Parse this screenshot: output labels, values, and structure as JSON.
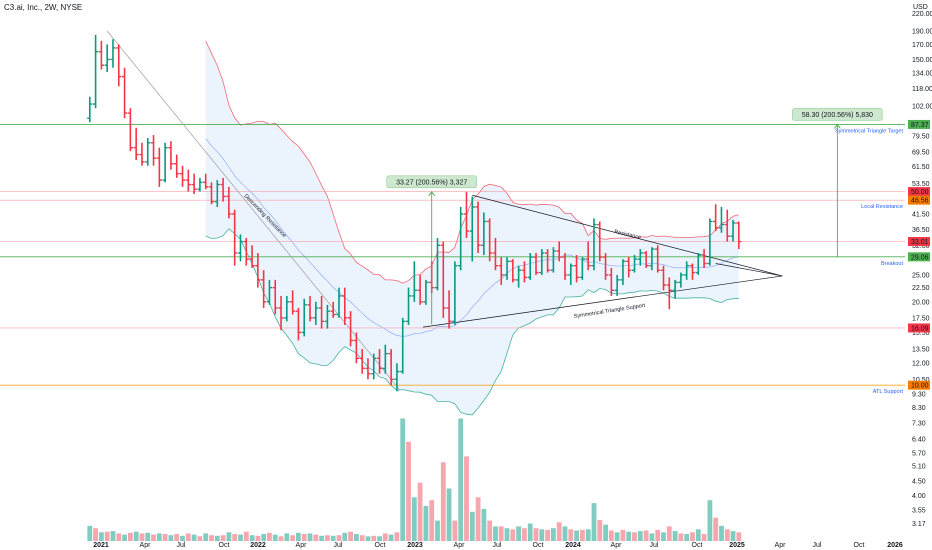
{
  "header": {
    "symbol": "C3.ai, Inc., 2W, NYSE",
    "currency": "USD"
  },
  "chart_data": {
    "type": "candlestick",
    "interval": "2W",
    "y_scale": "log",
    "ylim": [
      3.0,
      230.0
    ],
    "y_ticks": [
      "220.00",
      "190.00",
      "170.00",
      "150.00",
      "134.00",
      "118.00",
      "102.00",
      "79.50",
      "69.50",
      "61.50",
      "53.50",
      "41.50",
      "36.50",
      "32.00",
      "25.00",
      "22.50",
      "20.00",
      "17.50",
      "15.50",
      "13.50",
      "12.00",
      "10.50",
      "9.30",
      "8.30",
      "7.30",
      "6.40",
      "5.70",
      "5.10",
      "4.50",
      "4.00",
      "3.55",
      "3.17"
    ],
    "y_tick_values": [
      220,
      190,
      170,
      150,
      134,
      118,
      102,
      79.5,
      69.5,
      61.5,
      53.5,
      41.5,
      36.5,
      32,
      25,
      22.5,
      20,
      17.5,
      15.5,
      13.5,
      12,
      10.5,
      9.3,
      8.3,
      7.3,
      6.4,
      5.7,
      5.1,
      4.5,
      4.0,
      3.55,
      3.17
    ],
    "x_ticks": [
      "2021",
      "Apr",
      "Jul",
      "Oct",
      "2022",
      "Apr",
      "Jul",
      "Oct",
      "2023",
      "Apr",
      "Jul",
      "Oct",
      "2024",
      "Apr",
      "Jul",
      "Oct",
      "2025",
      "Apr",
      "Jul",
      "Oct",
      "2026"
    ],
    "x_tick_bold": [
      "2021",
      "2022",
      "2023",
      "2024",
      "2025",
      "2026"
    ],
    "price_badges": [
      {
        "value": 87.37,
        "text": "87.37",
        "color": "#4caf50"
      },
      {
        "value": 50.0,
        "text": "50.00",
        "color": "#f23645"
      },
      {
        "value": 46.56,
        "text": "46.56",
        "color": "#f57c00"
      },
      {
        "value": 33.01,
        "text": "33.01",
        "color": "#f23645"
      },
      {
        "value": 29.06,
        "text": "29.06",
        "color": "#4caf50"
      },
      {
        "value": 16.09,
        "text": "16.09",
        "color": "#f23645"
      },
      {
        "value": 10.0,
        "text": "10.00",
        "color": "#f57c00"
      }
    ],
    "horizontal_levels": [
      {
        "value": 87.37,
        "label": "Symmetrical Triangle Target",
        "color": "#4caf50"
      },
      {
        "value": 50.0,
        "label": "",
        "color": "#f7a0a8"
      },
      {
        "value": 46.56,
        "label": "Local Resistance",
        "color": "#f7a0a8"
      },
      {
        "value": 33.01,
        "label": "",
        "color": "#f7a0a8"
      },
      {
        "value": 29.06,
        "label": "Breakout",
        "color": "#4caf50"
      },
      {
        "value": 16.09,
        "label": "",
        "color": "#f7a0a8"
      },
      {
        "value": 10.0,
        "label": "ATL Support",
        "color": "#f5a623"
      }
    ],
    "trendline_labels": [
      "Descending Resistance",
      "Resistance",
      "Symmetrical Triangle Support"
    ],
    "measurements": [
      {
        "text": "33.27 (200.56%) 3,327",
        "from_bar": 59,
        "to_bar": 59,
        "from": 16.6,
        "to": 49.9
      },
      {
        "text": "58.30 (200.56%) 5,830",
        "from_bar": 129,
        "to_bar": 129,
        "from": 29.06,
        "to": 87.37
      }
    ],
    "colors": {
      "up": "#089981",
      "down": "#f23645",
      "vol_up": "#7fcdc1",
      "vol_down": "#f7a6ad",
      "band_fill": "#dbe9fb"
    },
    "candles": [
      [
        0,
        92.0,
        110.0,
        89.0,
        103.5
      ],
      [
        1,
        103.5,
        183.9,
        100.0,
        160.0
      ],
      [
        2,
        160.0,
        175.0,
        138.0,
        143.0
      ],
      [
        3,
        143.0,
        170.0,
        135.0,
        150.0
      ],
      [
        4,
        150.0,
        177.5,
        140.0,
        165.0
      ],
      [
        5,
        165.0,
        170.0,
        120.0,
        130.0
      ],
      [
        6,
        130.0,
        140.0,
        92.0,
        96.0
      ],
      [
        7,
        96.0,
        100.0,
        70.0,
        72.0
      ],
      [
        8,
        72.0,
        85.0,
        65.0,
        68.0
      ],
      [
        9,
        68.0,
        75.0,
        62.0,
        64.0
      ],
      [
        10,
        64.0,
        78.0,
        62.0,
        75.0
      ],
      [
        11,
        75.0,
        80.0,
        62.0,
        66.0
      ],
      [
        12,
        66.0,
        72.0,
        52.0,
        55.0
      ],
      [
        13,
        55.0,
        75.0,
        54.0,
        72.0
      ],
      [
        14,
        72.0,
        76.0,
        60.0,
        63.0
      ],
      [
        15,
        63.0,
        68.0,
        56.0,
        58.0
      ],
      [
        16,
        58.0,
        62.0,
        52.0,
        55.0
      ],
      [
        17,
        55.0,
        60.0,
        50.0,
        53.0
      ],
      [
        18,
        53.0,
        58.0,
        49.0,
        51.0
      ],
      [
        19,
        51.0,
        56.0,
        50.0,
        54.0
      ],
      [
        20,
        54.0,
        58.0,
        51.0,
        52.0
      ],
      [
        21,
        52.0,
        54.0,
        45.0,
        46.0
      ],
      [
        22,
        46.0,
        55.0,
        44.0,
        53.0
      ],
      [
        23,
        53.0,
        56.0,
        46.0,
        48.0
      ],
      [
        24,
        48.0,
        52.0,
        40.0,
        41.5
      ],
      [
        25,
        41.5,
        43.0,
        27.0,
        30.0
      ],
      [
        26,
        30.0,
        35.0,
        28.0,
        33.0
      ],
      [
        27,
        33.0,
        34.0,
        27.0,
        28.5
      ],
      [
        28,
        28.5,
        32.0,
        26.5,
        27.0
      ],
      [
        29,
        27.0,
        30.0,
        22.5,
        24.0
      ],
      [
        30,
        24.0,
        26.0,
        19.0,
        20.0
      ],
      [
        31,
        20.0,
        24.0,
        19.5,
        22.5
      ],
      [
        32,
        22.5,
        24.0,
        18.0,
        19.0
      ],
      [
        33,
        19.0,
        21.0,
        15.8,
        17.5
      ],
      [
        34,
        17.5,
        21.0,
        17.0,
        20.0
      ],
      [
        35,
        20.0,
        22.0,
        18.0,
        18.5
      ],
      [
        36,
        18.5,
        19.0,
        14.5,
        15.5
      ],
      [
        37,
        15.5,
        20.5,
        15.0,
        19.5
      ],
      [
        38,
        19.5,
        21.0,
        17.0,
        17.5
      ],
      [
        39,
        17.5,
        20.0,
        16.5,
        19.0
      ],
      [
        40,
        19.0,
        21.0,
        16.0,
        17.0
      ],
      [
        41,
        17.0,
        19.5,
        16.0,
        18.5
      ],
      [
        42,
        18.5,
        20.0,
        17.5,
        18.0
      ],
      [
        43,
        18.0,
        22.5,
        17.5,
        21.0
      ],
      [
        44,
        21.0,
        22.5,
        16.5,
        17.5
      ],
      [
        45,
        17.5,
        18.5,
        13.8,
        14.5
      ],
      [
        46,
        14.5,
        15.5,
        12.0,
        12.5
      ],
      [
        47,
        12.5,
        13.5,
        11.0,
        11.5
      ],
      [
        48,
        11.5,
        12.5,
        10.5,
        11.0
      ],
      [
        49,
        11.0,
        13.0,
        10.5,
        12.5
      ],
      [
        50,
        12.5,
        13.5,
        11.0,
        11.5
      ],
      [
        51,
        11.5,
        14.0,
        11.0,
        13.0
      ],
      [
        52,
        13.0,
        13.5,
        10.0,
        10.5
      ],
      [
        53,
        10.5,
        12.0,
        9.5,
        11.2
      ],
      [
        54,
        11.2,
        17.5,
        11.0,
        17.0
      ],
      [
        55,
        17.0,
        22.5,
        16.5,
        21.0
      ],
      [
        56,
        21.0,
        28.0,
        20.0,
        22.0
      ],
      [
        57,
        22.0,
        25.0,
        19.5,
        20.0
      ],
      [
        58,
        20.0,
        24.0,
        19.5,
        23.5
      ],
      [
        59,
        23.5,
        28.0,
        21.5,
        22.5
      ],
      [
        60,
        22.5,
        34.0,
        22.0,
        32.0
      ],
      [
        61,
        32.0,
        33.0,
        17.5,
        19.0
      ],
      [
        62,
        19.0,
        22.0,
        16.0,
        17.0
      ],
      [
        63,
        17.0,
        28.0,
        16.5,
        27.0
      ],
      [
        64,
        27.0,
        44.0,
        26.0,
        41.5
      ],
      [
        65,
        41.5,
        49.9,
        34.0,
        36.0
      ],
      [
        66,
        36.0,
        48.0,
        28.0,
        44.0
      ],
      [
        67,
        44.0,
        46.0,
        30.0,
        32.0
      ],
      [
        68,
        32.0,
        42.0,
        29.5,
        39.0
      ],
      [
        69,
        39.0,
        40.0,
        28.0,
        30.0
      ],
      [
        70,
        30.0,
        34.0,
        26.0,
        27.0
      ],
      [
        71,
        27.0,
        29.0,
        23.0,
        25.0
      ],
      [
        72,
        25.0,
        29.0,
        24.0,
        28.0
      ],
      [
        73,
        28.0,
        28.5,
        23.5,
        24.0
      ],
      [
        74,
        24.0,
        27.0,
        22.5,
        26.0
      ],
      [
        75,
        26.0,
        28.0,
        23.5,
        24.5
      ],
      [
        76,
        24.5,
        30.0,
        24.0,
        29.0
      ],
      [
        77,
        29.0,
        30.0,
        25.0,
        25.5
      ],
      [
        78,
        25.5,
        31.0,
        25.0,
        30.0
      ],
      [
        79,
        30.0,
        31.0,
        25.5,
        26.0
      ],
      [
        80,
        26.0,
        31.5,
        25.5,
        30.5
      ],
      [
        81,
        30.5,
        33.0,
        28.0,
        29.0
      ],
      [
        82,
        29.0,
        30.0,
        24.0,
        25.0
      ],
      [
        83,
        25.0,
        27.5,
        23.0,
        27.0
      ],
      [
        84,
        27.0,
        29.5,
        23.5,
        24.5
      ],
      [
        85,
        24.5,
        29.0,
        24.0,
        28.5
      ],
      [
        86,
        28.5,
        33.0,
        26.0,
        27.0
      ],
      [
        87,
        27.0,
        40.0,
        26.0,
        38.0
      ],
      [
        88,
        38.0,
        39.0,
        28.0,
        29.0
      ],
      [
        89,
        29.0,
        30.0,
        24.0,
        25.0
      ],
      [
        90,
        25.0,
        26.5,
        21.0,
        22.0
      ],
      [
        91,
        22.0,
        25.0,
        21.0,
        24.0
      ],
      [
        92,
        24.0,
        28.5,
        23.0,
        28.0
      ],
      [
        93,
        28.0,
        29.0,
        24.5,
        26.0
      ],
      [
        94,
        26.0,
        29.5,
        25.5,
        28.5
      ],
      [
        95,
        28.5,
        31.0,
        27.0,
        30.0
      ],
      [
        96,
        30.0,
        30.5,
        26.5,
        27.0
      ],
      [
        97,
        27.0,
        31.5,
        26.0,
        31.0
      ],
      [
        98,
        31.0,
        32.0,
        25.5,
        26.0
      ],
      [
        99,
        26.0,
        27.0,
        22.0,
        23.0
      ],
      [
        100,
        23.0,
        24.5,
        18.8,
        22.0
      ],
      [
        101,
        22.0,
        24.0,
        20.5,
        23.5
      ],
      [
        102,
        23.5,
        25.5,
        22.5,
        25.0
      ],
      [
        103,
        25.0,
        28.0,
        24.0,
        27.0
      ],
      [
        104,
        27.0,
        27.5,
        24.0,
        25.5
      ],
      [
        105,
        25.5,
        30.0,
        25.0,
        29.5
      ],
      [
        106,
        29.5,
        31.0,
        26.5,
        27.5
      ],
      [
        107,
        27.5,
        40.0,
        27.0,
        39.0
      ],
      [
        108,
        39.0,
        45.0,
        36.0,
        37.0
      ],
      [
        109,
        37.0,
        44.0,
        35.5,
        38.0
      ],
      [
        110,
        38.0,
        43.0,
        33.0,
        34.5
      ],
      [
        111,
        34.5,
        39.5,
        33.0,
        38.5
      ],
      [
        112,
        38.5,
        39.0,
        31.0,
        33.0
      ]
    ],
    "volume": [
      [
        0,
        2.6,
        "u"
      ],
      [
        1,
        2.2,
        "d"
      ],
      [
        2,
        1.5,
        "u"
      ],
      [
        3,
        1.6,
        "d"
      ],
      [
        4,
        1.7,
        "u"
      ],
      [
        5,
        1.3,
        "d"
      ],
      [
        6,
        1.1,
        "u"
      ],
      [
        7,
        1.4,
        "d"
      ],
      [
        8,
        1.6,
        "u"
      ],
      [
        9,
        1.3,
        "d"
      ],
      [
        10,
        1.4,
        "u"
      ],
      [
        11,
        1.1,
        "d"
      ],
      [
        12,
        1.3,
        "u"
      ],
      [
        13,
        1.2,
        "d"
      ],
      [
        14,
        1.0,
        "u"
      ],
      [
        15,
        1.2,
        "d"
      ],
      [
        16,
        0.9,
        "u"
      ],
      [
        17,
        1.3,
        "d"
      ],
      [
        18,
        1.1,
        "u"
      ],
      [
        19,
        0.8,
        "d"
      ],
      [
        20,
        1.3,
        "u"
      ],
      [
        21,
        1.0,
        "d"
      ],
      [
        22,
        0.9,
        "u"
      ],
      [
        23,
        1.0,
        "d"
      ],
      [
        24,
        1.5,
        "u"
      ],
      [
        25,
        1.2,
        "d"
      ],
      [
        26,
        1.1,
        "u"
      ],
      [
        27,
        1.6,
        "d"
      ],
      [
        28,
        1.0,
        "u"
      ],
      [
        29,
        0.9,
        "d"
      ],
      [
        30,
        1.2,
        "u"
      ],
      [
        31,
        1.4,
        "d"
      ],
      [
        32,
        1.1,
        "u"
      ],
      [
        33,
        0.8,
        "d"
      ],
      [
        34,
        1.3,
        "u"
      ],
      [
        35,
        1.0,
        "d"
      ],
      [
        36,
        1.4,
        "u"
      ],
      [
        37,
        1.2,
        "d"
      ],
      [
        38,
        1.3,
        "u"
      ],
      [
        39,
        1.1,
        "d"
      ],
      [
        40,
        0.9,
        "u"
      ],
      [
        41,
        1.0,
        "d"
      ],
      [
        42,
        0.9,
        "u"
      ],
      [
        43,
        1.0,
        "d"
      ],
      [
        44,
        1.4,
        "u"
      ],
      [
        45,
        1.6,
        "d"
      ],
      [
        46,
        1.2,
        "u"
      ],
      [
        47,
        1.0,
        "d"
      ],
      [
        48,
        0.8,
        "u"
      ],
      [
        49,
        0.9,
        "d"
      ],
      [
        50,
        0.8,
        "u"
      ],
      [
        51,
        1.3,
        "d"
      ],
      [
        52,
        1.1,
        "u"
      ],
      [
        53,
        1.5,
        "d"
      ],
      [
        54,
        21.0,
        "u"
      ],
      [
        55,
        17.0,
        "d"
      ],
      [
        56,
        7.5,
        "u"
      ],
      [
        57,
        10.0,
        "d"
      ],
      [
        58,
        6.0,
        "u"
      ],
      [
        59,
        7.0,
        "d"
      ],
      [
        60,
        3.5,
        "u"
      ],
      [
        61,
        13.5,
        "d"
      ],
      [
        62,
        9.0,
        "u"
      ],
      [
        63,
        3.5,
        "d"
      ],
      [
        64,
        21.0,
        "u"
      ],
      [
        65,
        14.5,
        "d"
      ],
      [
        66,
        5.0,
        "u"
      ],
      [
        67,
        7.5,
        "d"
      ],
      [
        68,
        5.5,
        "u"
      ],
      [
        69,
        3.5,
        "d"
      ],
      [
        70,
        2.5,
        "u"
      ],
      [
        71,
        2.5,
        "d"
      ],
      [
        72,
        2.2,
        "u"
      ],
      [
        73,
        2.0,
        "d"
      ],
      [
        74,
        2.5,
        "u"
      ],
      [
        75,
        2.2,
        "d"
      ],
      [
        76,
        3.0,
        "u"
      ],
      [
        77,
        2.2,
        "d"
      ],
      [
        78,
        2.0,
        "u"
      ],
      [
        79,
        1.9,
        "d"
      ],
      [
        80,
        2.2,
        "u"
      ],
      [
        81,
        3.2,
        "d"
      ],
      [
        82,
        2.5,
        "u"
      ],
      [
        83,
        2.0,
        "d"
      ],
      [
        84,
        1.8,
        "u"
      ],
      [
        85,
        1.9,
        "d"
      ],
      [
        86,
        2.0,
        "u"
      ],
      [
        87,
        6.5,
        "u"
      ],
      [
        88,
        3.6,
        "d"
      ],
      [
        89,
        2.8,
        "u"
      ],
      [
        90,
        1.8,
        "d"
      ],
      [
        91,
        1.5,
        "u"
      ],
      [
        92,
        1.9,
        "d"
      ],
      [
        93,
        1.6,
        "u"
      ],
      [
        94,
        1.5,
        "d"
      ],
      [
        95,
        1.7,
        "u"
      ],
      [
        96,
        1.8,
        "d"
      ],
      [
        97,
        1.3,
        "u"
      ],
      [
        98,
        1.9,
        "d"
      ],
      [
        99,
        1.5,
        "u"
      ],
      [
        100,
        2.5,
        "d"
      ],
      [
        101,
        1.7,
        "u"
      ],
      [
        102,
        1.3,
        "d"
      ],
      [
        103,
        1.2,
        "u"
      ],
      [
        104,
        1.5,
        "d"
      ],
      [
        105,
        2.0,
        "u"
      ],
      [
        106,
        1.2,
        "d"
      ],
      [
        107,
        7.0,
        "u"
      ],
      [
        108,
        4.0,
        "d"
      ],
      [
        109,
        2.6,
        "u"
      ],
      [
        110,
        2.0,
        "d"
      ],
      [
        111,
        1.7,
        "u"
      ],
      [
        112,
        1.5,
        "d"
      ]
    ]
  }
}
